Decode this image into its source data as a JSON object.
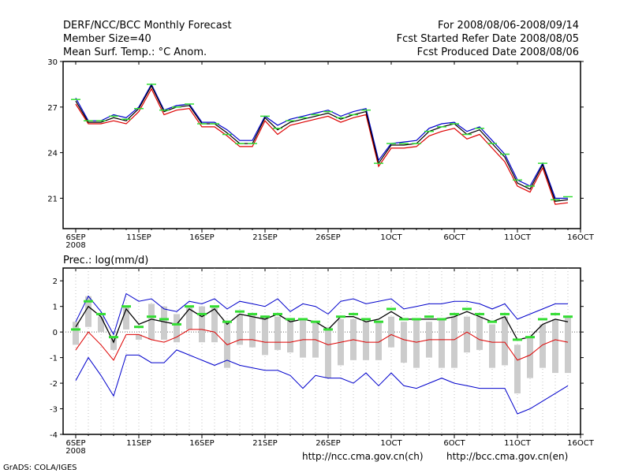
{
  "header": {
    "title": "DERF/NCC/BCC Monthly Forecast",
    "member_size": "Member Size=40",
    "variable": "Mean Surf. Temp.: °C Anom.",
    "period": "For 2008/08/06-2008/09/14",
    "started": "Fcst Started Refer Date 2008/08/05",
    "produced": "Fcst Produced Date 2008/08/06"
  },
  "footer": {
    "grads": "GrADS: COLA/IGES",
    "url_ch": "http://ncc.cma.gov.cn(ch)",
    "url_en": "http://bcc.cma.gov.cn(en)"
  },
  "colors": {
    "mean": "#000000",
    "upper": "#0000cc",
    "lower": "#dd0000",
    "marker": "#33dd33",
    "bar": "#cccccc"
  },
  "chart_data": [
    {
      "type": "line",
      "title": "Mean Surf. Temp.: °C Anom.",
      "xlabel": "",
      "ylabel": "",
      "ylim": [
        19,
        30
      ],
      "yticks": [
        21,
        24,
        27,
        30
      ],
      "xtick_labels": [
        "6SEP",
        "11SEP",
        "16SEP",
        "21SEP",
        "26SEP",
        "1OCT",
        "6OCT",
        "11OCT",
        "16OCT"
      ],
      "xtick_days": [
        0,
        5,
        10,
        15,
        20,
        25,
        30,
        35,
        40
      ],
      "year_label": "2008",
      "x_days": [
        0,
        1,
        2,
        3,
        4,
        5,
        6,
        7,
        8,
        9,
        10,
        11,
        12,
        13,
        14,
        15,
        16,
        17,
        18,
        19,
        20,
        21,
        22,
        23,
        24,
        25,
        26,
        27,
        28,
        29,
        30,
        31,
        32,
        33,
        34,
        35,
        36,
        37,
        38,
        39
      ],
      "series": [
        {
          "name": "ensemble mean",
          "values": [
            27.4,
            26.0,
            26.0,
            26.3,
            26.1,
            26.9,
            28.4,
            26.7,
            27.0,
            27.1,
            25.9,
            25.9,
            25.3,
            24.6,
            24.6,
            26.3,
            25.5,
            26.0,
            26.2,
            26.4,
            26.6,
            26.2,
            26.5,
            26.7,
            23.3,
            24.5,
            24.5,
            24.6,
            25.4,
            25.7,
            25.9,
            25.2,
            25.5,
            24.6,
            23.7,
            22.0,
            21.6,
            23.2,
            20.8,
            20.9
          ]
        },
        {
          "name": "upper bound",
          "values": [
            27.6,
            26.1,
            26.1,
            26.5,
            26.3,
            27.0,
            28.5,
            26.8,
            27.1,
            27.2,
            26.0,
            26.0,
            25.5,
            24.8,
            24.8,
            26.4,
            25.8,
            26.2,
            26.4,
            26.6,
            26.8,
            26.4,
            26.7,
            26.9,
            23.5,
            24.6,
            24.7,
            24.8,
            25.6,
            25.9,
            26.0,
            25.4,
            25.7,
            24.8,
            23.9,
            22.2,
            21.8,
            23.3,
            21.0,
            21.0
          ]
        },
        {
          "name": "lower bound",
          "values": [
            27.2,
            25.9,
            25.9,
            26.1,
            25.9,
            26.7,
            28.2,
            26.5,
            26.8,
            26.9,
            25.7,
            25.7,
            25.1,
            24.4,
            24.4,
            26.1,
            25.2,
            25.8,
            26.0,
            26.2,
            26.4,
            26.0,
            26.3,
            26.5,
            23.1,
            24.3,
            24.3,
            24.4,
            25.1,
            25.4,
            25.6,
            24.9,
            25.2,
            24.3,
            23.4,
            21.8,
            21.4,
            23.0,
            20.6,
            20.7
          ]
        },
        {
          "name": "observed",
          "values": [
            27.5,
            26.1,
            26.1,
            26.4,
            26.2,
            26.9,
            28.5,
            26.8,
            27.0,
            27.2,
            25.9,
            25.9,
            25.2,
            24.6,
            24.6,
            26.4,
            25.6,
            26.1,
            26.3,
            26.5,
            26.7,
            26.3,
            26.5,
            26.8,
            23.3,
            24.6,
            24.6,
            24.6,
            25.4,
            25.7,
            25.9,
            25.2,
            25.6,
            24.6,
            23.9,
            22.2,
            21.8,
            23.3,
            20.9,
            21.1
          ]
        }
      ]
    },
    {
      "type": "line",
      "title": "Prec.: log(mm/d)",
      "xlabel": "",
      "ylabel": "",
      "ylim": [
        -4,
        2.5
      ],
      "yticks": [
        -4,
        -3,
        -2,
        -1,
        0,
        1,
        2
      ],
      "xtick_labels": [
        "6SEP",
        "11SEP",
        "16SEP",
        "21SEP",
        "26SEP",
        "1OCT",
        "6OCT",
        "11OCT",
        "16OCT"
      ],
      "xtick_days": [
        0,
        5,
        10,
        15,
        20,
        25,
        30,
        35,
        40
      ],
      "year_label": "2008",
      "x_days": [
        0,
        1,
        2,
        3,
        4,
        5,
        6,
        7,
        8,
        9,
        10,
        11,
        12,
        13,
        14,
        15,
        16,
        17,
        18,
        19,
        20,
        21,
        22,
        23,
        24,
        25,
        26,
        27,
        28,
        29,
        30,
        31,
        32,
        33,
        34,
        35,
        36,
        37,
        38,
        39
      ],
      "series": [
        {
          "name": "ensemble mean",
          "values": [
            0.2,
            1.0,
            0.6,
            -0.4,
            0.9,
            0.3,
            0.5,
            0.4,
            0.3,
            0.9,
            0.6,
            0.9,
            0.3,
            0.7,
            0.6,
            0.5,
            0.7,
            0.4,
            0.5,
            0.4,
            0.1,
            0.6,
            0.6,
            0.4,
            0.5,
            0.8,
            0.5,
            0.5,
            0.5,
            0.5,
            0.6,
            0.8,
            0.6,
            0.4,
            0.6,
            -0.3,
            -0.2,
            0.3,
            0.5,
            0.4
          ]
        },
        {
          "name": "upper bound",
          "values": [
            0.4,
            1.4,
            0.8,
            -0.1,
            1.5,
            1.2,
            1.3,
            0.9,
            0.8,
            1.2,
            1.1,
            1.3,
            0.9,
            1.2,
            1.1,
            1.0,
            1.3,
            0.8,
            1.1,
            1.0,
            0.7,
            1.2,
            1.3,
            1.1,
            1.2,
            1.3,
            0.9,
            1.0,
            1.1,
            1.1,
            1.2,
            1.2,
            1.1,
            0.9,
            1.1,
            0.5,
            0.7,
            0.9,
            1.1,
            1.1
          ]
        },
        {
          "name": "lower bound",
          "values": [
            -0.7,
            0.0,
            -0.5,
            -1.1,
            -0.1,
            -0.1,
            -0.3,
            -0.4,
            -0.2,
            0.1,
            0.1,
            0.0,
            -0.5,
            -0.3,
            -0.3,
            -0.4,
            -0.4,
            -0.4,
            -0.3,
            -0.3,
            -0.5,
            -0.4,
            -0.3,
            -0.4,
            -0.4,
            -0.1,
            -0.3,
            -0.4,
            -0.3,
            -0.3,
            -0.3,
            0.0,
            -0.3,
            -0.4,
            -0.4,
            -1.1,
            -0.9,
            -0.5,
            -0.3,
            -0.4
          ]
        },
        {
          "name": "minimum",
          "values": [
            -1.9,
            -1.0,
            -1.7,
            -2.5,
            -0.9,
            -0.9,
            -1.2,
            -1.2,
            -0.7,
            -0.9,
            -1.1,
            -1.3,
            -1.1,
            -1.3,
            -1.4,
            -1.5,
            -1.5,
            -1.7,
            -2.2,
            -1.7,
            -1.8,
            -1.8,
            -2.0,
            -1.6,
            -2.1,
            -1.6,
            -2.1,
            -2.2,
            -2.0,
            -1.8,
            -2.0,
            -2.1,
            -2.2,
            -2.2,
            -2.2,
            -3.2,
            -3.0,
            -2.7,
            -2.4,
            -2.1
          ]
        },
        {
          "name": "observed",
          "values": [
            0.1,
            1.2,
            0.7,
            -0.2,
            1.0,
            0.2,
            0.6,
            0.5,
            0.3,
            1.0,
            0.7,
            1.0,
            0.4,
            0.8,
            0.7,
            0.6,
            0.7,
            0.5,
            0.5,
            0.4,
            0.1,
            0.6,
            0.7,
            0.5,
            0.4,
            0.9,
            0.5,
            0.5,
            0.6,
            0.5,
            0.7,
            0.9,
            0.7,
            0.4,
            0.7,
            -0.3,
            -0.2,
            0.5,
            0.7,
            0.6
          ]
        },
        {
          "name": "bar high",
          "values": [
            0.4,
            1.4,
            0.6,
            -0.2,
            1.0,
            -0.1,
            1.1,
            1.0,
            0.7,
            1.0,
            1.0,
            1.0,
            0.4,
            0.7,
            0.7,
            0.6,
            0.6,
            0.5,
            0.5,
            0.4,
            0.2,
            0.5,
            0.5,
            0.4,
            0.4,
            0.6,
            0.4,
            0.5,
            0.4,
            0.5,
            0.6,
            0.6,
            0.6,
            0.3,
            0.6,
            -0.5,
            -0.2,
            0.3,
            0.5,
            0.6
          ]
        },
        {
          "name": "bar low",
          "values": [
            -0.5,
            0.2,
            0.0,
            -0.7,
            0.1,
            -0.3,
            -0.3,
            -0.3,
            -0.4,
            0.1,
            -0.4,
            -0.4,
            -1.4,
            -0.5,
            -0.6,
            -0.9,
            -0.7,
            -0.8,
            -1.0,
            -1.0,
            -1.8,
            -1.3,
            -1.1,
            -1.1,
            -1.1,
            -0.6,
            -1.2,
            -1.4,
            -1.0,
            -1.4,
            -1.4,
            -0.8,
            -0.7,
            -1.4,
            -1.3,
            -2.4,
            -1.8,
            -1.4,
            -1.6,
            -1.6
          ]
        }
      ]
    }
  ]
}
